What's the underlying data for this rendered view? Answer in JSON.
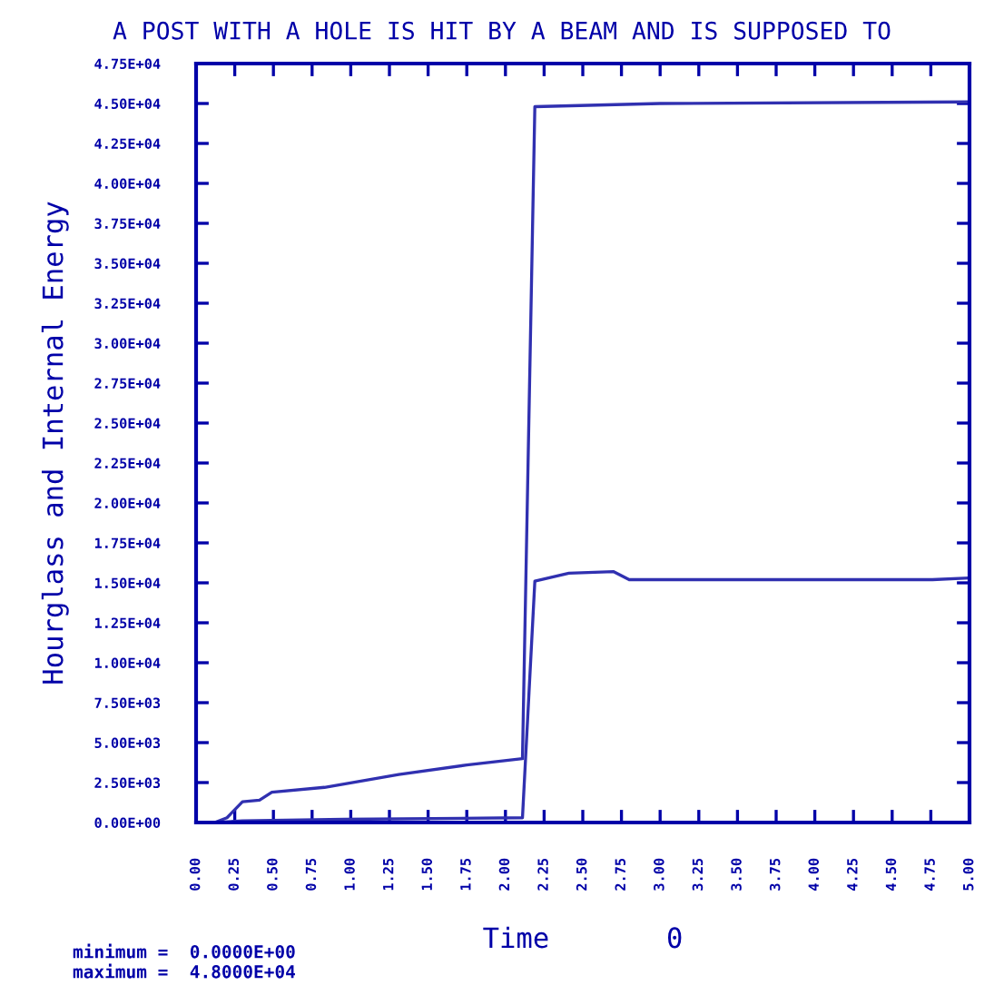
{
  "chart_data": {
    "type": "line",
    "title": "A POST WITH A HOLE IS HIT BY A BEAM AND IS SUPPOSED TO",
    "xlabel": "Time       0",
    "ylabel": "Hourglass and Internal Energy",
    "annotations": [
      "minimum =  0.0000E+00",
      "maximum =  4.8000E+04"
    ],
    "series": [
      {
        "color": "#3030b0",
        "x": [
          0,
          0.12,
          0.2,
          0.3,
          0.41,
          0.49,
          0.83,
          1.31,
          1.75,
          2.11,
          2.19,
          3.0,
          5.0
        ],
        "values": [
          0,
          0,
          300,
          1300,
          1400,
          1900,
          2200,
          3000,
          3600,
          4000,
          44800,
          45000,
          45100
        ]
      },
      {
        "color": "#3030b0",
        "x": [
          0,
          0.12,
          0.3,
          0.96,
          2.11,
          2.19,
          2.41,
          2.7,
          2.8,
          4.76,
          4.99
        ],
        "values": [
          0,
          0,
          100,
          200,
          300,
          15100,
          15600,
          15700,
          15200,
          15200,
          15300
        ]
      }
    ],
    "xlim": [
      0,
      5
    ],
    "ylim": [
      0,
      47500
    ],
    "xticks": [
      {
        "value": 0,
        "label": "0.00"
      },
      {
        "value": 0.25,
        "label": "0.25"
      },
      {
        "value": 0.5,
        "label": "0.50"
      },
      {
        "value": 0.75,
        "label": "0.75"
      },
      {
        "value": 1,
        "label": "1.00"
      },
      {
        "value": 1.25,
        "label": "1.25"
      },
      {
        "value": 1.5,
        "label": "1.50"
      },
      {
        "value": 1.75,
        "label": "1.75"
      },
      {
        "value": 2,
        "label": "2.00"
      },
      {
        "value": 2.25,
        "label": "2.25"
      },
      {
        "value": 2.5,
        "label": "2.50"
      },
      {
        "value": 2.75,
        "label": "2.75"
      },
      {
        "value": 3,
        "label": "3.00"
      },
      {
        "value": 3.25,
        "label": "3.25"
      },
      {
        "value": 3.5,
        "label": "3.50"
      },
      {
        "value": 3.75,
        "label": "3.75"
      },
      {
        "value": 4,
        "label": "4.00"
      },
      {
        "value": 4.25,
        "label": "4.25"
      },
      {
        "value": 4.5,
        "label": "4.50"
      },
      {
        "value": 4.75,
        "label": "4.75"
      },
      {
        "value": 5,
        "label": "5.00"
      }
    ],
    "yticks": [
      {
        "value": 0,
        "label": "0.00E+00"
      },
      {
        "value": 2500,
        "label": "2.50E+03"
      },
      {
        "value": 5000,
        "label": "5.00E+03"
      },
      {
        "value": 7500,
        "label": "7.50E+03"
      },
      {
        "value": 10000,
        "label": "1.00E+04"
      },
      {
        "value": 12500,
        "label": "1.25E+04"
      },
      {
        "value": 15000,
        "label": "1.50E+04"
      },
      {
        "value": 17500,
        "label": "1.75E+04"
      },
      {
        "value": 20000,
        "label": "2.00E+04"
      },
      {
        "value": 22500,
        "label": "2.25E+04"
      },
      {
        "value": 25000,
        "label": "2.50E+04"
      },
      {
        "value": 27500,
        "label": "2.75E+04"
      },
      {
        "value": 30000,
        "label": "3.00E+04"
      },
      {
        "value": 32500,
        "label": "3.25E+04"
      },
      {
        "value": 35000,
        "label": "3.50E+04"
      },
      {
        "value": 37500,
        "label": "3.75E+04"
      },
      {
        "value": 40000,
        "label": "4.00E+04"
      },
      {
        "value": 42500,
        "label": "4.25E+04"
      },
      {
        "value": 45000,
        "label": "4.50E+04"
      },
      {
        "value": 47500,
        "label": "4.75E+04"
      }
    ],
    "grid": false,
    "legend": false,
    "marker": "none",
    "line_style": "solid"
  }
}
